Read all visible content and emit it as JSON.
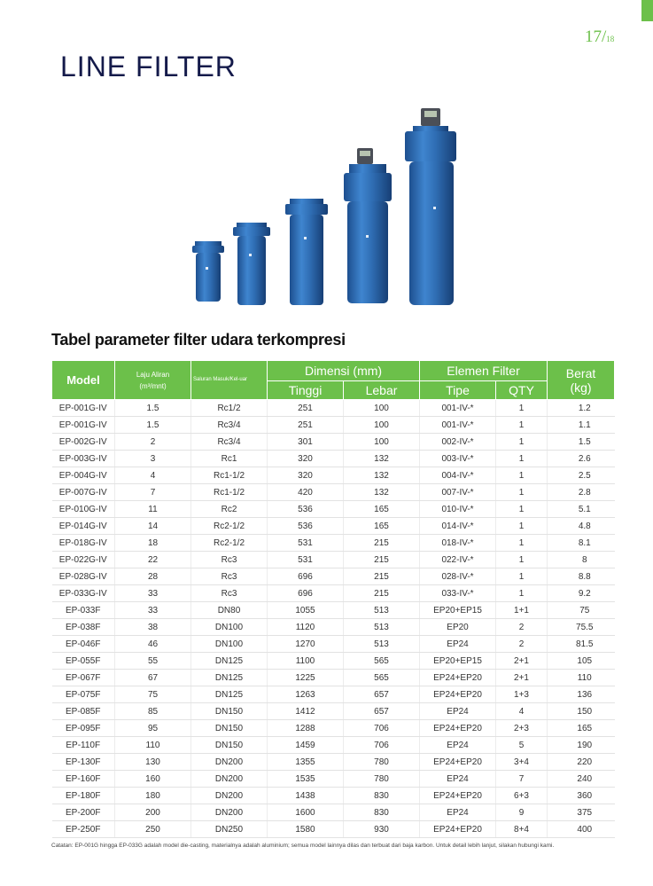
{
  "page": {
    "number": "17/",
    "total": "18"
  },
  "title": "LINE FILTER",
  "subtitle": "Tabel parameter filter udara terkompresi",
  "table": {
    "header": {
      "model": "Model",
      "flow_rate_line1": "Laju   Aliran",
      "flow_rate_line2": "(m³/mnt)",
      "port_label": "Saluran   Masuk/Kel-uar",
      "dimension_group": "Dimensi (mm)",
      "height": "Tinggi",
      "width": "Lebar",
      "element_group": "Elemen Filter",
      "type": "Tipe",
      "qty": "QTY",
      "weight_line1": "Berat",
      "weight_line2": "(kg)"
    },
    "rows": [
      [
        "EP-001G-IV",
        "1.5",
        "Rc1/2",
        "251",
        "100",
        "001-IV-*",
        "1",
        "1.2"
      ],
      [
        "EP-001G-IV",
        "1.5",
        "Rc3/4",
        "251",
        "100",
        "001-IV-*",
        "1",
        "1.1"
      ],
      [
        "EP-002G-IV",
        "2",
        "Rc3/4",
        "301",
        "100",
        "002-IV-*",
        "1",
        "1.5"
      ],
      [
        "EP-003G-IV",
        "3",
        "Rc1",
        "320",
        "132",
        "003-IV-*",
        "1",
        "2.6"
      ],
      [
        "EP-004G-IV",
        "4",
        "Rc1-1/2",
        "320",
        "132",
        "004-IV-*",
        "1",
        "2.5"
      ],
      [
        "EP-007G-IV",
        "7",
        "Rc1-1/2",
        "420",
        "132",
        "007-IV-*",
        "1",
        "2.8"
      ],
      [
        "EP-010G-IV",
        "11",
        "Rc2",
        "536",
        "165",
        "010-IV-*",
        "1",
        "5.1"
      ],
      [
        "EP-014G-IV",
        "14",
        "Rc2-1/2",
        "536",
        "165",
        "014-IV-*",
        "1",
        "4.8"
      ],
      [
        "EP-018G-IV",
        "18",
        "Rc2-1/2",
        "531",
        "215",
        "018-IV-*",
        "1",
        "8.1"
      ],
      [
        "EP-022G-IV",
        "22",
        "Rc3",
        "531",
        "215",
        "022-IV-*",
        "1",
        "8"
      ],
      [
        "EP-028G-IV",
        "28",
        "Rc3",
        "696",
        "215",
        "028-IV-*",
        "1",
        "8.8"
      ],
      [
        "EP-033G-IV",
        "33",
        "Rc3",
        "696",
        "215",
        "033-IV-*",
        "1",
        "9.2"
      ],
      [
        "EP-033F",
        "33",
        "DN80",
        "1055",
        "513",
        "EP20+EP15",
        "1+1",
        "75"
      ],
      [
        "EP-038F",
        "38",
        "DN100",
        "1120",
        "513",
        "EP20",
        "2",
        "75.5"
      ],
      [
        "EP-046F",
        "46",
        "DN100",
        "1270",
        "513",
        "EP24",
        "2",
        "81.5"
      ],
      [
        "EP-055F",
        "55",
        "DN125",
        "1100",
        "565",
        "EP20+EP15",
        "2+1",
        "105"
      ],
      [
        "EP-067F",
        "67",
        "DN125",
        "1225",
        "565",
        "EP24+EP20",
        "2+1",
        "110"
      ],
      [
        "EP-075F",
        "75",
        "DN125",
        "1263",
        "657",
        "EP24+EP20",
        "1+3",
        "136"
      ],
      [
        "EP-085F",
        "85",
        "DN150",
        "1412",
        "657",
        "EP24",
        "4",
        "150"
      ],
      [
        "EP-095F",
        "95",
        "DN150",
        "1288",
        "706",
        "EP24+EP20",
        "2+3",
        "165"
      ],
      [
        "EP-110F",
        "110",
        "DN150",
        "1459",
        "706",
        "EP24",
        "5",
        "190"
      ],
      [
        "EP-130F",
        "130",
        "DN200",
        "1355",
        "780",
        "EP24+EP20",
        "3+4",
        "220"
      ],
      [
        "EP-160F",
        "160",
        "DN200",
        "1535",
        "780",
        "EP24",
        "7",
        "240"
      ],
      [
        "EP-180F",
        "180",
        "DN200",
        "1438",
        "830",
        "EP24+EP20",
        "6+3",
        "360"
      ],
      [
        "EP-200F",
        "200",
        "DN200",
        "1600",
        "830",
        "EP24",
        "9",
        "375"
      ],
      [
        "EP-250F",
        "250",
        "DN250",
        "1580",
        "930",
        "EP24+EP20",
        "8+4",
        "400"
      ]
    ]
  },
  "note": "Catatan: EP-001G hingga EP-033G adalah model die-casting, materialnya adalah aluminium; semua model lainnya dilas dan terbuat dari baja karbon. Untuk detail lebih lanjut, silakan hubungi kami.",
  "colors": {
    "accent": "#6cc04a",
    "title": "#141a4a",
    "filter_body": "#2f6db3"
  }
}
